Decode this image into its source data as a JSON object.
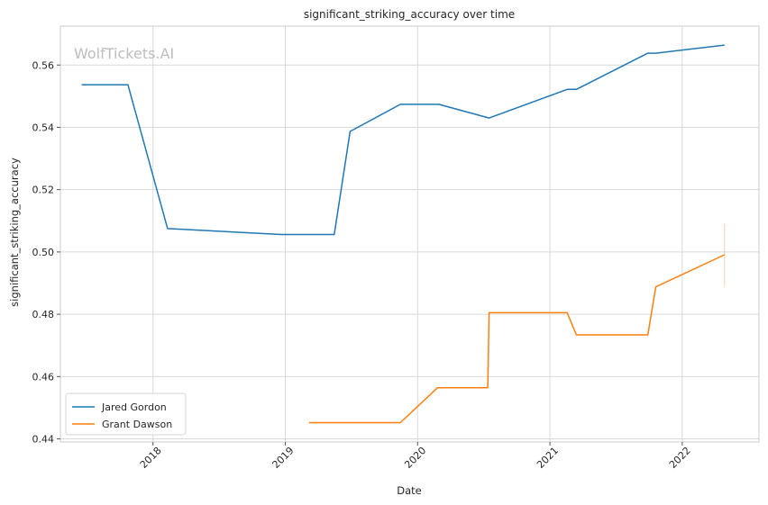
{
  "chart_data": {
    "type": "line",
    "title": "significant_striking_accuracy over time",
    "xlabel": "Date",
    "ylabel": "significant_striking_accuracy",
    "watermark": "WolfTickets.AI",
    "xlim": [
      2017.3,
      2022.58
    ],
    "ylim": [
      0.439,
      0.5725
    ],
    "x_ticks": [
      2018,
      2019,
      2020,
      2021,
      2022
    ],
    "x_tick_labels": [
      "2018",
      "2019",
      "2020",
      "2021",
      "2022"
    ],
    "y_ticks": [
      0.44,
      0.46,
      0.48,
      0.5,
      0.52,
      0.54,
      0.56
    ],
    "y_tick_labels": [
      "0.44",
      "0.46",
      "0.48",
      "0.50",
      "0.52",
      "0.54",
      "0.56"
    ],
    "grid": true,
    "legend_position": "lower-left",
    "series": [
      {
        "name": "Jared Gordon",
        "color": "#1f77b4",
        "x": [
          2017.46,
          2017.81,
          2018.11,
          2018.97,
          2019.37,
          2019.49,
          2019.87,
          2020.16,
          2020.54,
          2021.13,
          2021.2,
          2021.74,
          2021.8,
          2022.32
        ],
        "y": [
          0.5537,
          0.5537,
          0.5075,
          0.5056,
          0.5056,
          0.5387,
          0.5474,
          0.5474,
          0.543,
          0.5522,
          0.5522,
          0.5638,
          0.5638,
          0.5664
        ]
      },
      {
        "name": "Grant Dawson",
        "color": "#ff7f0e",
        "x": [
          2019.18,
          2019.87,
          2020.15,
          2020.53,
          2020.54,
          2021.13,
          2021.2,
          2021.74,
          2021.8,
          2022.32
        ],
        "y": [
          0.4452,
          0.4452,
          0.4564,
          0.4564,
          0.4805,
          0.4805,
          0.4734,
          0.4734,
          0.4888,
          0.4991
        ]
      }
    ],
    "error_bar": {
      "series": "Grant Dawson",
      "x": 2022.32,
      "y_low": 0.4888,
      "y_high": 0.509,
      "color": "#ff7f0e"
    }
  }
}
